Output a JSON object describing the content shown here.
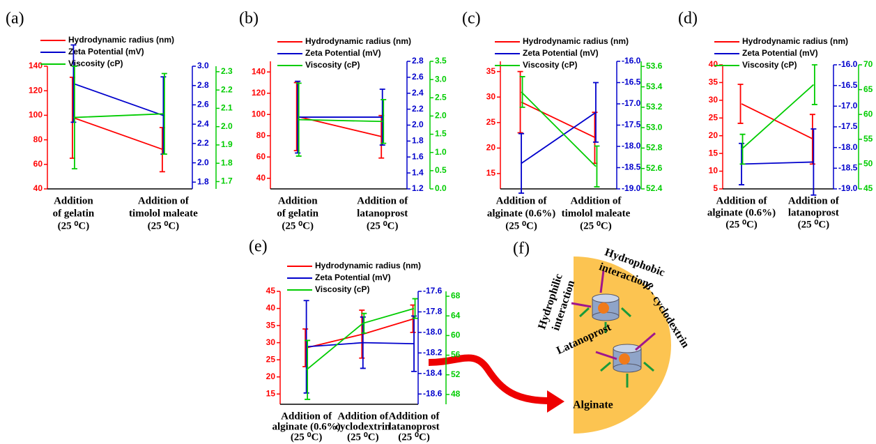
{
  "chart_data": [
    {
      "type": "line",
      "panel": "(a)",
      "categories": [
        [
          "Addition",
          "of gelatin",
          "(25 ⁰C)"
        ],
        [
          "Addition of",
          "timolol maleate",
          "(25 ⁰C)"
        ]
      ],
      "series": [
        {
          "name": "Hydrodynamic radius (nm)",
          "color": "#ff0000",
          "axis": "y",
          "values": [
            98,
            72
          ],
          "errors": [
            33,
            18
          ]
        },
        {
          "name": "Zeta Potential (mV)",
          "color": "#0000cc",
          "axis": "y2",
          "values": [
            2.82,
            2.49
          ],
          "errors": [
            0.4,
            0.4
          ]
        },
        {
          "name": "Viscosity (cP)",
          "color": "#00cc00",
          "axis": "y3",
          "values": [
            2.05,
            2.07
          ],
          "errors": [
            0.28,
            0.22
          ]
        }
      ],
      "ylim": [
        40,
        140
      ],
      "yticks": [
        40,
        60,
        80,
        100,
        120,
        140
      ],
      "y2lim": [
        1.73,
        3.0
      ],
      "y2ticks": [
        1.8,
        {
          "value": 2,
          "label": "2.0"
        },
        2.2,
        2.4,
        2.6,
        2.8,
        {
          "value": 3,
          "label": "3.0"
        }
      ],
      "y3lim": [
        1.66,
        2.33
      ],
      "y3ticks": [
        1.7,
        1.8,
        1.9,
        {
          "value": 2,
          "label": "2.0"
        },
        2.1,
        2.2,
        2.3
      ]
    },
    {
      "type": "line",
      "panel": "(b)",
      "categories": [
        [
          "Addition",
          "of gelatin",
          "(25 ⁰C)"
        ],
        [
          "Addition of",
          "latanoprost",
          "(25 ⁰C)"
        ]
      ],
      "series": [
        {
          "name": "Hydrodynamic radius (nm)",
          "color": "#ff0000",
          "axis": "y",
          "values": [
            98,
            79
          ],
          "errors": [
            32,
            20
          ]
        },
        {
          "name": "Zeta Potential (mV)",
          "color": "#0000cc",
          "axis": "y2",
          "values": [
            2.1,
            2.1
          ],
          "errors": [
            0.45,
            0.35
          ]
        },
        {
          "name": "Viscosity (cP)",
          "color": "#00cc00",
          "axis": "y3",
          "values": [
            1.9,
            1.85
          ],
          "errors": [
            1.0,
            0.6
          ]
        }
      ],
      "ylim": [
        30,
        150
      ],
      "yticks": [
        40,
        60,
        80,
        100,
        120,
        140
      ],
      "y2lim": [
        1.2,
        2.8
      ],
      "y2ticks": [
        1.2,
        1.4,
        1.6,
        1.8,
        {
          "value": 2,
          "label": "2.0"
        },
        2.2,
        2.4,
        2.6,
        2.8
      ],
      "y3lim": [
        0,
        3.5
      ],
      "y3ticks": [
        {
          "value": 0,
          "label": "0.0"
        },
        0.5,
        {
          "value": 1,
          "label": "1.0"
        },
        1.5,
        {
          "value": 2,
          "label": "2.0"
        },
        2.5,
        {
          "value": 3,
          "label": "3.0"
        },
        3.5
      ]
    },
    {
      "type": "line",
      "panel": "(c)",
      "categories": [
        [
          "Addition of",
          "alginate (0.6%)",
          "(25 ⁰C)"
        ],
        [
          "Addition of",
          "timolol maleate",
          "(25 ⁰C)"
        ]
      ],
      "series": [
        {
          "name": "Hydrodynamic radius (nm)",
          "color": "#ff0000",
          "axis": "y",
          "values": [
            29,
            22
          ],
          "errors": [
            6,
            5
          ]
        },
        {
          "name": "Zeta Potential (mV)",
          "color": "#0000cc",
          "axis": "y2",
          "values": [
            -18.4,
            -17.2
          ],
          "errors": [
            0.7,
            0.7
          ]
        },
        {
          "name": "Viscosity (cP)",
          "color": "#00cc00",
          "axis": "y3",
          "values": [
            53.35,
            52.62
          ],
          "errors": [
            0.15,
            0.2
          ]
        }
      ],
      "ylim": [
        12,
        37
      ],
      "yticks": [
        15,
        20,
        25,
        30,
        35
      ],
      "y2lim": [
        -19,
        -16
      ],
      "y2ticks": [
        {
          "value": -19,
          "label": "-19.0"
        },
        -18.5,
        {
          "value": -18,
          "label": "-18.0"
        },
        -17.5,
        {
          "value": -17,
          "label": "-17.0"
        },
        -16.5,
        {
          "value": -16,
          "label": "-16.0"
        }
      ],
      "y3lim": [
        52.4,
        53.65
      ],
      "y3ticks": [
        52.4,
        52.6,
        52.8,
        {
          "value": 53,
          "label": "53.0"
        },
        53.2,
        53.4,
        53.6
      ]
    },
    {
      "type": "line",
      "panel": "(d)",
      "categories": [
        [
          "Addition of",
          "alginate (0.6%)",
          "(25 ⁰C)"
        ],
        [
          "Addition of",
          "latanoprost",
          "(25 ⁰C)"
        ]
      ],
      "series": [
        {
          "name": "Hydrodynamic radius (nm)",
          "color": "#ff0000",
          "axis": "y",
          "values": [
            29,
            19
          ],
          "errors": [
            5.5,
            7
          ]
        },
        {
          "name": "Zeta Potential (mV)",
          "color": "#0000cc",
          "axis": "y2",
          "values": [
            -18.4,
            -18.35
          ],
          "errors": [
            0.5,
            0.8
          ]
        },
        {
          "name": "Viscosity (cP)",
          "color": "#00cc00",
          "axis": "y3",
          "values": [
            53,
            66
          ],
          "errors": [
            3,
            4
          ]
        }
      ],
      "ylim": [
        5,
        40
      ],
      "yticks": [
        5,
        10,
        15,
        20,
        25,
        30,
        35,
        40
      ],
      "y2lim": [
        -19,
        -16
      ],
      "y2ticks": [
        {
          "value": -19,
          "label": "-19.0"
        },
        -18.5,
        {
          "value": -18,
          "label": "-18.0"
        },
        -17.5,
        {
          "value": -17,
          "label": "-17.0"
        },
        -16.5,
        {
          "value": -16,
          "label": "-16.0"
        }
      ],
      "y3lim": [
        45,
        70
      ],
      "y3ticks": [
        45,
        50,
        55,
        60,
        65,
        70
      ]
    },
    {
      "type": "line",
      "panel": "(e)",
      "categories": [
        [
          "Addition of",
          "alginate (0.6%)",
          "(25 ⁰C)"
        ],
        [
          "Addition of",
          "cyclodextrin",
          "(25 ⁰C)"
        ],
        [
          "Addition of",
          "latanoprost",
          "(25 ⁰C)"
        ]
      ],
      "series": [
        {
          "name": "Hydrodynamic radius (nm)",
          "color": "#ff0000",
          "axis": "y",
          "values": [
            28.5,
            32.5,
            37
          ],
          "errors": [
            5.5,
            7,
            4
          ]
        },
        {
          "name": "Zeta Potential (mV)",
          "color": "#0000cc",
          "axis": "y2",
          "values": [
            -18.14,
            -18.1,
            -18.11
          ],
          "errors": [
            0.45,
            0.25,
            0.27
          ]
        },
        {
          "name": "Viscosity (cP)",
          "color": "#00cc00",
          "axis": "y3",
          "values": [
            53,
            62.5,
            65.5
          ],
          "errors": [
            6,
            2,
            2
          ]
        }
      ],
      "ylim": [
        12,
        45
      ],
      "yticks": [
        15,
        20,
        25,
        30,
        35,
        40,
        45
      ],
      "y2lim": [
        -18.7,
        -17.6
      ],
      "y2ticks": [
        -18.6,
        -18.4,
        -18.2,
        {
          "value": -18,
          "label": "-18.0"
        },
        -17.8,
        -17.6
      ],
      "y3lim": [
        46,
        69
      ],
      "y3ticks": [
        48,
        52,
        56,
        60,
        64,
        68
      ]
    }
  ],
  "diagram": {
    "panel": "(f)",
    "labels": {
      "hydrophobic": [
        "Hydrophobic",
        "interaction"
      ],
      "hydrophilic": [
        "Hydrophilic",
        "interaction"
      ],
      "cyclodextrin": "β - cyclodextrin",
      "drug": "Latanoprost",
      "matrix": "Alginate"
    }
  }
}
